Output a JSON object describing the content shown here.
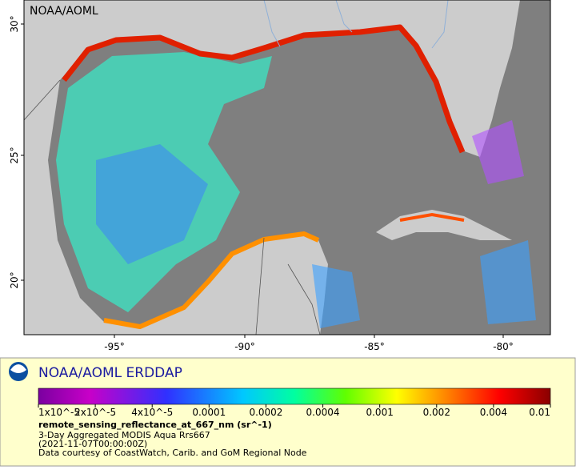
{
  "map": {
    "credit": "NOAA/AOML",
    "lat_labels": [
      "30°",
      "25°",
      "20°"
    ],
    "lon_labels": [
      "-95°",
      "-90°",
      "-85°",
      "-80°"
    ]
  },
  "legend": {
    "title": "NOAA/AOML ERDDAP",
    "scale_labels": [
      "1x10^-5",
      "2x10^-5",
      "4x10^-5",
      "0.0001",
      "0.0002",
      "0.0004",
      "0.001",
      "0.002",
      "0.004",
      "0.01"
    ],
    "variable": "remote_sensing_reflectance_at_667_nm (sr^-1)",
    "lines": [
      "3-Day Aggregated MODIS Aqua Rrs667",
      "(2021-11-07T00:00:00Z)",
      "Data courtesy of CoastWatch, Carib. and GoM Regional Node"
    ]
  }
}
